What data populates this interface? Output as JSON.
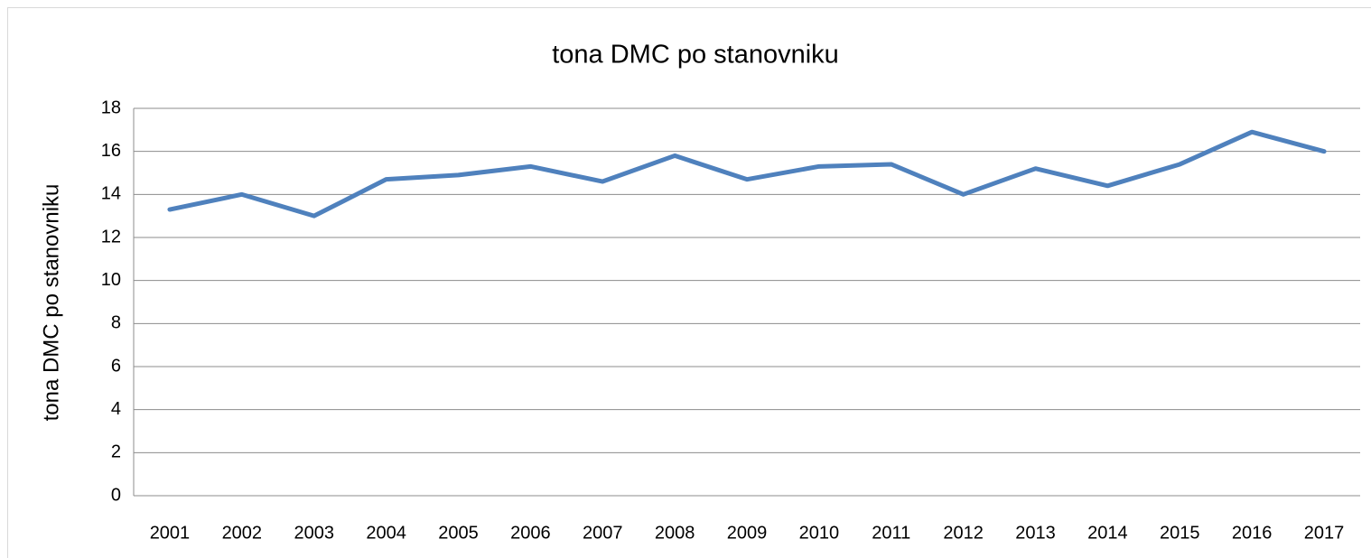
{
  "chart_data": {
    "type": "line",
    "title": "tona DMC po stanovniku",
    "y_label": "tona DMC po stanovniku",
    "categories": [
      "2001",
      "2002",
      "2003",
      "2004",
      "2005",
      "2006",
      "2007",
      "2008",
      "2009",
      "2010",
      "2011",
      "2012",
      "2013",
      "2014",
      "2015",
      "2016",
      "2017"
    ],
    "series": [
      {
        "name": "tona DMC po stanovniku",
        "color": "#4f81bd",
        "values": [
          13.3,
          14.0,
          13.0,
          14.7,
          14.9,
          15.3,
          14.6,
          15.8,
          14.7,
          15.3,
          15.4,
          14.0,
          15.2,
          14.4,
          15.4,
          16.9,
          16.0
        ]
      }
    ],
    "ylim": [
      0,
      18
    ],
    "yticks": [
      0,
      2,
      4,
      6,
      8,
      10,
      12,
      14,
      16,
      18
    ],
    "grid": true,
    "legend": false
  }
}
